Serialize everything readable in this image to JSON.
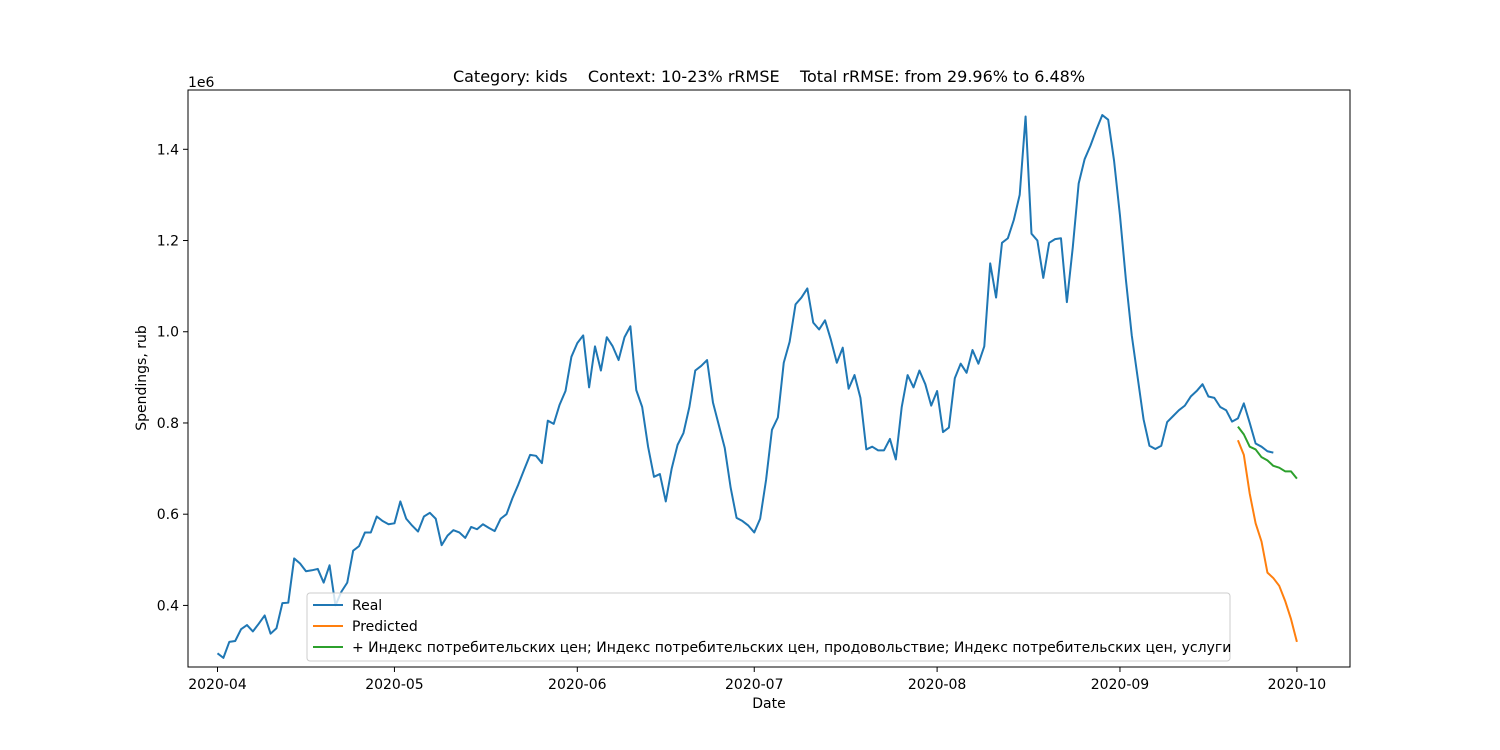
{
  "chart_data": {
    "type": "line",
    "title": "Category: kids    Context: 10-23% rRMSE    Total rRMSE: from 29.96% to 6.48%",
    "xlabel": "Date",
    "ylabel": "Spendings, rub",
    "y_multiplier_label": "1e6",
    "xlim": [
      "2020-03-27",
      "2020-10-10"
    ],
    "ylim": [
      0.265,
      1.53
    ],
    "x_ticks": [
      "2020-04",
      "2020-05",
      "2020-06",
      "2020-07",
      "2020-08",
      "2020-09",
      "2020-10"
    ],
    "x_tick_dates": [
      "2020-04-01",
      "2020-05-01",
      "2020-06-01",
      "2020-07-01",
      "2020-08-01",
      "2020-09-01",
      "2020-10-01"
    ],
    "y_ticks": [
      0.4,
      0.6,
      0.8,
      1.0,
      1.2,
      1.4
    ],
    "y_tick_labels": [
      "0.4",
      "0.6",
      "0.8",
      "1.0",
      "1.2",
      "1.4"
    ],
    "legend_position": "lower-center",
    "series": [
      {
        "name": "Real",
        "color": "#1f77b4",
        "start": "2020-04-01",
        "values": [
          0.295,
          0.285,
          0.32,
          0.322,
          0.348,
          0.357,
          0.343,
          0.36,
          0.378,
          0.338,
          0.35,
          0.405,
          0.406,
          0.503,
          0.492,
          0.475,
          0.477,
          0.48,
          0.45,
          0.488,
          0.4,
          0.43,
          0.45,
          0.52,
          0.53,
          0.56,
          0.56,
          0.595,
          0.585,
          0.578,
          0.58,
          0.628,
          0.59,
          0.575,
          0.562,
          0.595,
          0.603,
          0.59,
          0.532,
          0.553,
          0.565,
          0.56,
          0.548,
          0.572,
          0.567,
          0.578,
          0.57,
          0.563,
          0.59,
          0.6,
          0.635,
          0.665,
          0.698,
          0.73,
          0.728,
          0.712,
          0.805,
          0.798,
          0.84,
          0.87,
          0.945,
          0.975,
          0.992,
          0.878,
          0.968,
          0.915,
          0.988,
          0.968,
          0.938,
          0.988,
          1.012,
          0.872,
          0.835,
          0.748,
          0.682,
          0.688,
          0.628,
          0.7,
          0.752,
          0.778,
          0.835,
          0.915,
          0.925,
          0.938,
          0.845,
          0.795,
          0.745,
          0.658,
          0.592,
          0.585,
          0.575,
          0.56,
          0.59,
          0.675,
          0.785,
          0.812,
          0.932,
          0.978,
          1.06,
          1.075,
          1.095,
          1.02,
          1.005,
          1.025,
          0.982,
          0.932,
          0.965,
          0.875,
          0.905,
          0.855,
          0.742,
          0.748,
          0.74,
          0.74,
          0.765,
          0.72,
          0.835,
          0.905,
          0.878,
          0.915,
          0.885,
          0.838,
          0.87,
          0.78,
          0.79,
          0.898,
          0.93,
          0.91,
          0.96,
          0.93,
          0.968,
          1.15,
          1.075,
          1.195,
          1.205,
          1.245,
          1.3,
          1.472,
          1.215,
          1.2,
          1.118,
          1.195,
          1.203,
          1.205,
          1.065,
          1.185,
          1.325,
          1.378,
          1.408,
          1.443,
          1.475,
          1.465,
          1.375,
          1.255,
          1.115,
          0.992,
          0.9,
          0.808,
          0.75,
          0.743,
          0.75,
          0.802,
          0.815,
          0.828,
          0.838,
          0.858,
          0.87,
          0.885,
          0.858,
          0.855,
          0.835,
          0.828,
          0.803,
          0.81,
          0.843,
          0.8,
          0.755,
          0.748,
          0.738,
          0.735
        ]
      },
      {
        "name": "Predicted",
        "color": "#ff7f0e",
        "start": "2020-09-21",
        "values": [
          0.762,
          0.73,
          0.645,
          0.58,
          0.54,
          0.472,
          0.46,
          0.443,
          0.41,
          0.37,
          0.32
        ]
      },
      {
        "name": "+ Индекс потребительских цен; Индекс потребительских цен, продовольствие; Индекс потребительских цен, услуги",
        "color": "#2ca02c",
        "start": "2020-09-21",
        "values": [
          0.792,
          0.775,
          0.748,
          0.742,
          0.725,
          0.718,
          0.706,
          0.702,
          0.694,
          0.694,
          0.678
        ]
      }
    ]
  }
}
